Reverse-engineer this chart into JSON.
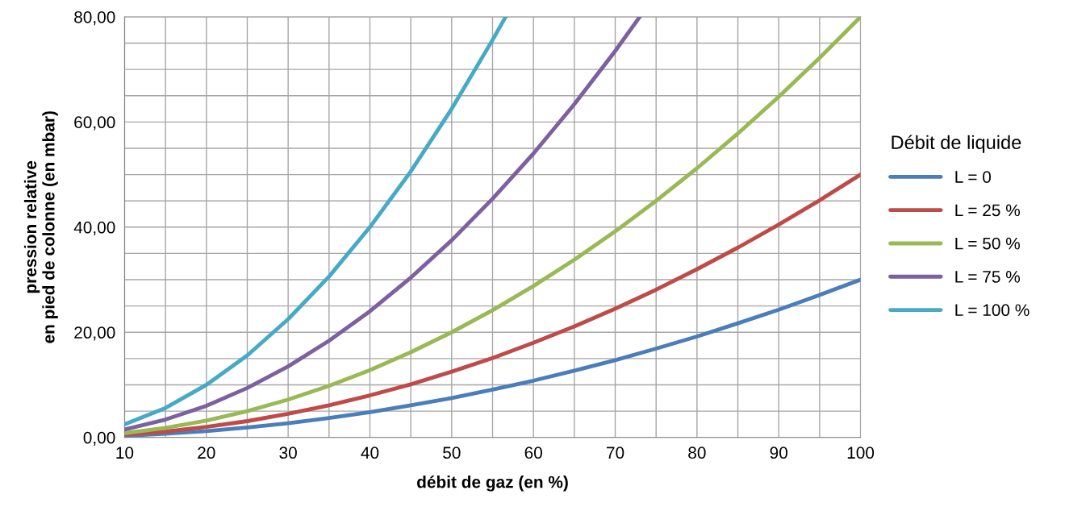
{
  "chart_data": {
    "type": "line",
    "xlabel": "débit de gaz (en %)",
    "ylabel": "pression relative\nen pied de colonne (en mbar)",
    "legend_title": "Débit de liquide",
    "xlim": [
      10,
      100
    ],
    "ylim": [
      0,
      80
    ],
    "xticks": [
      10,
      {
        "value": 15,
        "label": null
      },
      20,
      {
        "value": 25,
        "label": null
      },
      30,
      {
        "value": 35,
        "label": null
      },
      40,
      {
        "value": 45,
        "label": null
      },
      50,
      {
        "value": 55,
        "label": null
      },
      60,
      {
        "value": 65,
        "label": null
      },
      70,
      {
        "value": 75,
        "label": null
      },
      80,
      {
        "value": 85,
        "label": null
      },
      90,
      {
        "value": 95,
        "label": null
      },
      100
    ],
    "yticks": [
      {
        "value": 0,
        "label": "0,00"
      },
      {
        "value": 5,
        "label": null
      },
      {
        "value": 10,
        "label": null
      },
      {
        "value": 15,
        "label": null
      },
      {
        "value": 20,
        "label": "20,00"
      },
      {
        "value": 25,
        "label": null
      },
      {
        "value": 30,
        "label": null
      },
      {
        "value": 35,
        "label": null
      },
      {
        "value": 40,
        "label": "40,00"
      },
      {
        "value": 45,
        "label": null
      },
      {
        "value": 50,
        "label": null
      },
      {
        "value": 55,
        "label": null
      },
      {
        "value": 60,
        "label": "60,00"
      },
      {
        "value": 65,
        "label": null
      },
      {
        "value": 70,
        "label": null
      },
      {
        "value": 75,
        "label": null
      },
      {
        "value": 80,
        "label": "80,00"
      }
    ],
    "grid": true,
    "legend": "right",
    "marker": "none",
    "line_style": "solid",
    "series": [
      {
        "name": "L = 0",
        "color": "#4a7ebb",
        "x": [
          10,
          15,
          20,
          25,
          30,
          35,
          40,
          45,
          50,
          55,
          60,
          65,
          70,
          75,
          80,
          85,
          90,
          95,
          100
        ],
        "values": [
          0.3,
          0.7,
          1.2,
          1.9,
          2.7,
          3.7,
          4.8,
          6.1,
          7.5,
          9.1,
          10.8,
          12.7,
          14.7,
          16.9,
          19.2,
          21.7,
          24.3,
          27.1,
          30
        ]
      },
      {
        "name": "L = 25 %",
        "color": "#be4b48",
        "x": [
          10,
          15,
          20,
          25,
          30,
          35,
          40,
          45,
          50,
          55,
          60,
          65,
          70,
          75,
          80,
          85,
          90,
          95,
          100
        ],
        "values": [
          0.5,
          1.1,
          2,
          3.1,
          4.5,
          6.1,
          8,
          10.1,
          12.5,
          15.1,
          18,
          21.1,
          24.5,
          28.1,
          32,
          36.1,
          40.5,
          45.1,
          50
        ]
      },
      {
        "name": "L = 50 %",
        "color": "#98b954",
        "x": [
          10,
          15,
          20,
          25,
          30,
          35,
          40,
          45,
          50,
          55,
          60,
          65,
          70,
          75,
          80,
          85,
          90,
          95,
          100
        ],
        "values": [
          0.8,
          1.8,
          3.2,
          5,
          7.2,
          9.8,
          12.8,
          16.2,
          20,
          24.2,
          28.8,
          33.8,
          39.2,
          45,
          51.2,
          57.8,
          64.8,
          72.2,
          80
        ]
      },
      {
        "name": "L = 75 %",
        "color": "#7d60a0",
        "x": [
          10,
          15,
          20,
          25,
          30,
          35,
          40,
          45,
          50,
          55,
          60,
          65,
          70,
          73
        ],
        "values": [
          1.5,
          3.4,
          6,
          9.4,
          13.5,
          18.4,
          24,
          30.4,
          37.5,
          45.4,
          54,
          63.4,
          73.5,
          80
        ]
      },
      {
        "name": "L = 100 %",
        "color": "#46aac5",
        "x": [
          10,
          15,
          20,
          25,
          30,
          35,
          40,
          45,
          50,
          55,
          56.6
        ],
        "values": [
          2.5,
          5.6,
          10,
          15.6,
          22.5,
          30.6,
          40,
          50.6,
          62.5,
          75.6,
          80
        ]
      }
    ]
  }
}
